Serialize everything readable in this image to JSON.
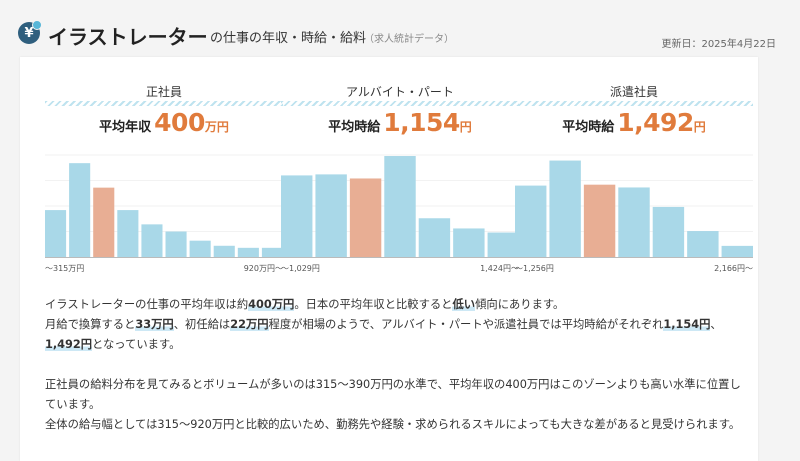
{
  "header": {
    "title_main": "イラストレーター",
    "title_sub": "の仕事の年収・時給・給料",
    "title_note": "（求人統計データ）",
    "updated": "更新日：2025年4月22日",
    "icon": "yen-icon"
  },
  "panels": [
    {
      "title": "正社員",
      "stat_label": "平均年収",
      "stat_value": "400",
      "stat_unit": "万円",
      "axis_left": "～315万円",
      "axis_right": "920万円～"
    },
    {
      "title": "アルバイト・パート",
      "stat_label": "平均時給",
      "stat_value": "1,154",
      "stat_unit": "円",
      "axis_left": "～1,029円",
      "axis_right": "1,424円～"
    },
    {
      "title": "派遣社員",
      "stat_label": "平均時給",
      "stat_value": "1,492",
      "stat_unit": "円",
      "axis_left": "～1,256円",
      "axis_right": "2,166円～"
    }
  ],
  "chart_data": [
    {
      "type": "bar",
      "title": "正社員",
      "x_start_label": "～315万円",
      "x_end_label": "920万円～",
      "values": [
        46,
        92,
        68,
        46,
        32,
        25,
        16,
        11,
        9,
        9
      ],
      "highlight_index": 2,
      "ylim": [
        0,
        100
      ],
      "colors": {
        "bar": "#a9d8e8",
        "highlight": "#e8ae94"
      }
    },
    {
      "type": "bar",
      "title": "アルバイト・パート",
      "x_start_label": "～1,029円",
      "x_end_label": "1,424円～",
      "values": [
        80,
        81,
        77,
        99,
        38,
        28,
        24
      ],
      "highlight_index": 2,
      "ylim": [
        0,
        100
      ],
      "colors": {
        "bar": "#a9d8e8",
        "highlight": "#e8ae94"
      }
    },
    {
      "type": "bar",
      "title": "派遣社員",
      "x_start_label": "～1,256円",
      "x_end_label": "2,166円～",
      "values": [
        77,
        104,
        78,
        75,
        54,
        28,
        12
      ],
      "highlight_index": 2,
      "ylim": [
        0,
        110
      ],
      "colors": {
        "bar": "#a9d8e8",
        "highlight": "#e8ae94"
      }
    }
  ],
  "description": {
    "p1": [
      {
        "t": "イラストレーターの仕事の平均年収は約"
      },
      {
        "t": "400万円",
        "hl": true
      },
      {
        "t": "。日本の平均年収と比較すると"
      },
      {
        "t": "低い",
        "hl": true
      },
      {
        "t": "傾向にあります。"
      },
      {
        "br": true
      },
      {
        "t": "月給で換算すると"
      },
      {
        "t": "33万円",
        "hl": true
      },
      {
        "t": "、初任給は"
      },
      {
        "t": "22万円",
        "hl": true
      },
      {
        "t": "程度が相場のようで、アルバイト・パートや派遣社員では平均時給がそれぞれ"
      },
      {
        "t": "1,154円",
        "hl": true
      },
      {
        "t": "、"
      },
      {
        "br": true
      },
      {
        "t": "1,492円",
        "hl": true
      },
      {
        "t": "となっています。"
      }
    ],
    "p2": [
      {
        "t": "正社員の給料分布を見てみるとボリュームが多いのは315～390万円の水準で、平均年収の400万円はこのゾーンよりも高い水準に位置しています。"
      },
      {
        "br": true
      },
      {
        "t": "全体の給与幅としては315～920万円と比較的広いため、勤務先や経験・求められるスキルによっても大きな差があると見受けられます。"
      }
    ]
  }
}
